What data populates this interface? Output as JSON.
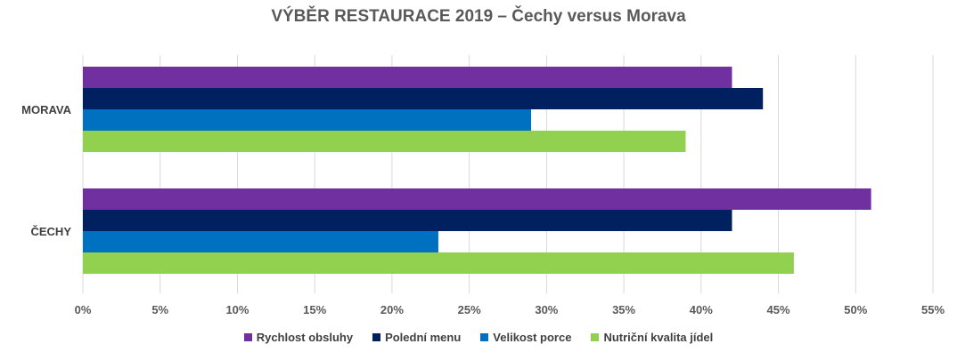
{
  "chart_data": {
    "type": "bar",
    "orientation": "horizontal",
    "title": "VÝBĚR RESTAURACE 2019 – Čechy versus Morava",
    "categories": [
      "MORAVA",
      "ČECHY"
    ],
    "series": [
      {
        "name": "Rychlost obsluhy",
        "color": "#7030A0",
        "values": [
          42,
          51
        ]
      },
      {
        "name": "Polední menu",
        "color": "#002060",
        "values": [
          44,
          42
        ]
      },
      {
        "name": "Velikost porce",
        "color": "#0070C0",
        "values": [
          29,
          23
        ]
      },
      {
        "name": "Nutriční kvalita jídel",
        "color": "#92D050",
        "values": [
          39,
          46
        ]
      }
    ],
    "x_ticks": [
      "0%",
      "5%",
      "10%",
      "15%",
      "20%",
      "25%",
      "30%",
      "35%",
      "40%",
      "45%",
      "50%",
      "55%"
    ],
    "xlim": [
      0,
      55
    ],
    "grid": true,
    "legend_position": "bottom"
  }
}
